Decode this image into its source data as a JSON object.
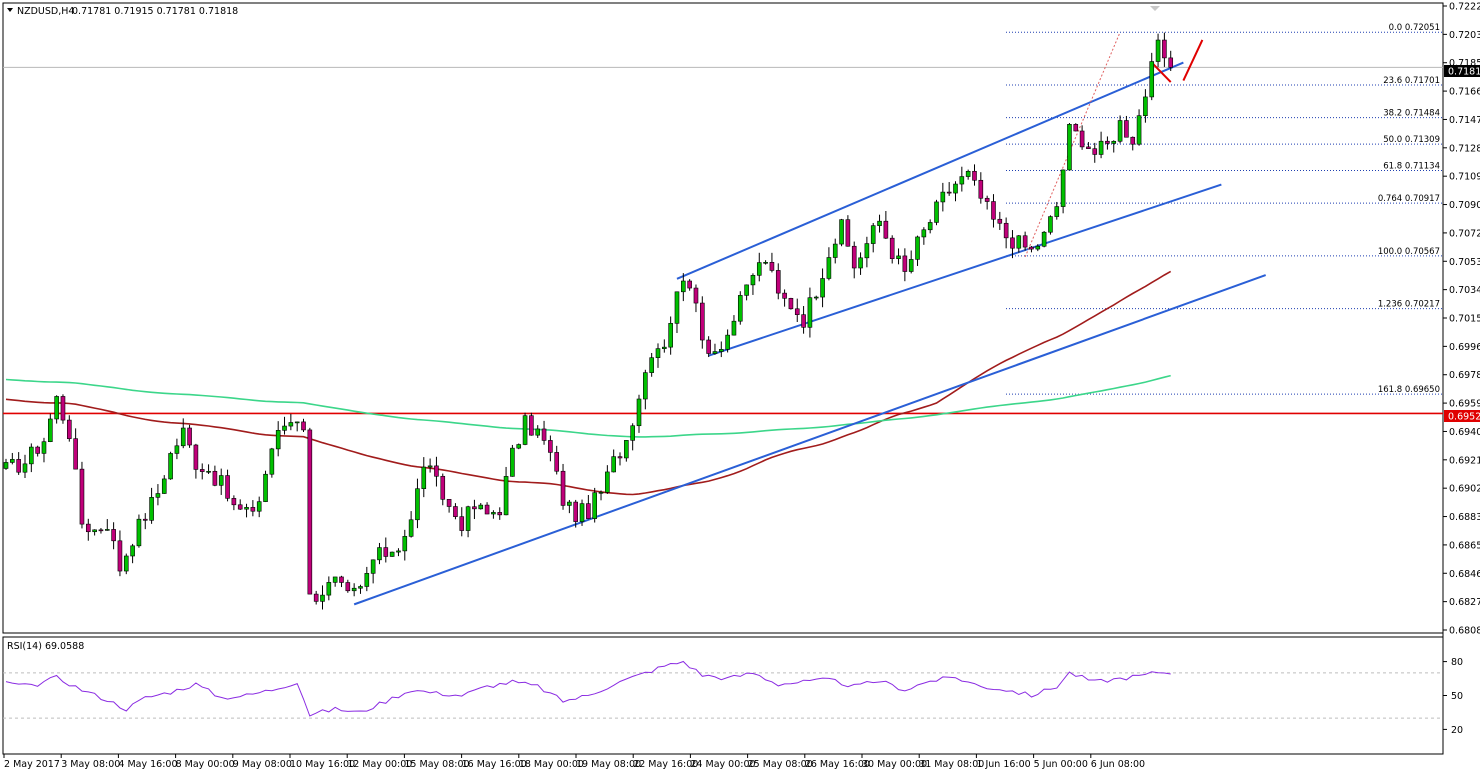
{
  "header": {
    "symbol": "NZDUSD,H4",
    "ohlc": "0.71781 0.71915 0.71781 0.71818"
  },
  "rsi_header": "RSI(14) 69.0588",
  "colors": {
    "bull": "#00c000",
    "bear": "#c0007a",
    "trend": "#2a5fd6",
    "ma_red": "#a11c1c",
    "ma_green": "#3cd68a",
    "fib": "#1f3fb0",
    "support": "#e00000",
    "rsi": "#8a2be2"
  },
  "chart_data": {
    "type": "candlestick",
    "price_range": [
      0.68085,
      0.72225
    ],
    "price_ticks": [
      "0.72225",
      "0.72035",
      "0.71850",
      "0.71660",
      "0.71470",
      "0.71285",
      "0.71095",
      "0.70905",
      "0.70720",
      "0.70530",
      "0.70340",
      "0.70155",
      "0.69966",
      "0.69780",
      "0.69590",
      "0.69400",
      "0.69215",
      "0.69025",
      "0.68833",
      "0.68650",
      "0.68460",
      "0.68270",
      "0.68085"
    ],
    "current_price": {
      "value": 0.71818,
      "label": "0.71818"
    },
    "support_line": {
      "value": 0.69522,
      "label": "0.69522"
    },
    "fib_levels": [
      {
        "label": "0.0 0.72051",
        "value": 0.72051
      },
      {
        "label": "23.6 0.71701",
        "value": 0.71701
      },
      {
        "label": "38.2 0.71484",
        "value": 0.71484
      },
      {
        "label": "50.0 0.71309",
        "value": 0.71309
      },
      {
        "label": "61.8 0.71134",
        "value": 0.71134
      },
      {
        "label": "0.764 0.70917",
        "value": 0.70917
      },
      {
        "label": "100.0 0.70567",
        "value": 0.70567
      },
      {
        "label": "1.236 0.70217",
        "value": 0.70217
      },
      {
        "label": "161.8 0.69650",
        "value": 0.6965
      }
    ],
    "time_labels": [
      "2 May 2017",
      "3 May 08:00",
      "4 May 16:00",
      "8 May 00:00",
      "9 May 08:00",
      "10 May 16:00",
      "12 May 00:00",
      "15 May 08:00",
      "16 May 16:00",
      "18 May 00:00",
      "19 May 08:00",
      "22 May 16:00",
      "24 May 00:00",
      "25 May 08:00",
      "26 May 16:00",
      "30 May 00:00",
      "31 May 08:00",
      "1 Jun 16:00",
      "5 Jun 00:00",
      "6 Jun 08:00"
    ],
    "anchors": [
      [
        0,
        0.6915
      ],
      [
        3,
        0.692
      ],
      [
        6,
        0.6935
      ],
      [
        8,
        0.6962
      ],
      [
        10,
        0.694
      ],
      [
        12,
        0.688
      ],
      [
        14,
        0.6875
      ],
      [
        16,
        0.688
      ],
      [
        18,
        0.685
      ],
      [
        20,
        0.687
      ],
      [
        22,
        0.6885
      ],
      [
        24,
        0.69
      ],
      [
        26,
        0.6925
      ],
      [
        28,
        0.694
      ],
      [
        30,
        0.692
      ],
      [
        32,
        0.6915
      ],
      [
        34,
        0.6905
      ],
      [
        36,
        0.689
      ],
      [
        38,
        0.6885
      ],
      [
        40,
        0.6895
      ],
      [
        42,
        0.693
      ],
      [
        44,
        0.6945
      ],
      [
        46,
        0.695
      ],
      [
        47,
        0.6945
      ],
      [
        48,
        0.683
      ],
      [
        50,
        0.6835
      ],
      [
        52,
        0.684
      ],
      [
        54,
        0.683
      ],
      [
        56,
        0.6835
      ],
      [
        58,
        0.6855
      ],
      [
        60,
        0.686
      ],
      [
        62,
        0.6865
      ],
      [
        64,
        0.688
      ],
      [
        66,
        0.692
      ],
      [
        68,
        0.6905
      ],
      [
        70,
        0.689
      ],
      [
        72,
        0.688
      ],
      [
        74,
        0.689
      ],
      [
        76,
        0.6885
      ],
      [
        78,
        0.689
      ],
      [
        80,
        0.6925
      ],
      [
        82,
        0.6945
      ],
      [
        84,
        0.694
      ],
      [
        86,
        0.6925
      ],
      [
        88,
        0.6895
      ],
      [
        90,
        0.6885
      ],
      [
        92,
        0.6888
      ],
      [
        94,
        0.69
      ],
      [
        96,
        0.692
      ],
      [
        98,
        0.6935
      ],
      [
        100,
        0.6965
      ],
      [
        102,
        0.6995
      ],
      [
        104,
        0.7
      ],
      [
        106,
        0.703
      ],
      [
        107,
        0.7045
      ],
      [
        108,
        0.704
      ],
      [
        110,
        0.7
      ],
      [
        112,
        0.6995
      ],
      [
        114,
        0.7005
      ],
      [
        116,
        0.7025
      ],
      [
        118,
        0.7045
      ],
      [
        120,
        0.7055
      ],
      [
        122,
        0.703
      ],
      [
        124,
        0.7025
      ],
      [
        126,
        0.7015
      ],
      [
        128,
        0.7035
      ],
      [
        130,
        0.706
      ],
      [
        132,
        0.7075
      ],
      [
        134,
        0.705
      ],
      [
        136,
        0.7065
      ],
      [
        138,
        0.708
      ],
      [
        140,
        0.706
      ],
      [
        142,
        0.7045
      ],
      [
        144,
        0.7065
      ],
      [
        146,
        0.708
      ],
      [
        148,
        0.7095
      ],
      [
        150,
        0.7105
      ],
      [
        152,
        0.711
      ],
      [
        154,
        0.7095
      ],
      [
        156,
        0.708
      ],
      [
        158,
        0.707
      ],
      [
        160,
        0.7065
      ],
      [
        162,
        0.706
      ],
      [
        164,
        0.707
      ],
      [
        166,
        0.709
      ],
      [
        168,
        0.714
      ],
      [
        170,
        0.7135
      ],
      [
        172,
        0.7125
      ],
      [
        174,
        0.713
      ],
      [
        176,
        0.7145
      ],
      [
        178,
        0.7135
      ],
      [
        180,
        0.7165
      ],
      [
        182,
        0.7195
      ],
      [
        184,
        0.7182
      ]
    ],
    "rsi": {
      "range": [
        0,
        100
      ],
      "ticks": [
        80,
        50,
        20
      ],
      "guide_levels": [
        70,
        30
      ],
      "last_value": 69.0588,
      "anchors": [
        [
          0,
          61
        ],
        [
          4,
          58
        ],
        [
          8,
          66
        ],
        [
          12,
          55
        ],
        [
          16,
          46
        ],
        [
          19,
          38
        ],
        [
          22,
          48
        ],
        [
          26,
          53
        ],
        [
          30,
          60
        ],
        [
          34,
          48
        ],
        [
          38,
          50
        ],
        [
          42,
          55
        ],
        [
          46,
          62
        ],
        [
          48,
          33
        ],
        [
          52,
          38
        ],
        [
          56,
          35
        ],
        [
          60,
          45
        ],
        [
          64,
          55
        ],
        [
          68,
          52
        ],
        [
          72,
          50
        ],
        [
          76,
          58
        ],
        [
          80,
          62
        ],
        [
          84,
          58
        ],
        [
          88,
          45
        ],
        [
          92,
          50
        ],
        [
          96,
          60
        ],
        [
          100,
          68
        ],
        [
          104,
          76
        ],
        [
          107,
          80
        ],
        [
          110,
          68
        ],
        [
          114,
          65
        ],
        [
          118,
          70
        ],
        [
          122,
          60
        ],
        [
          126,
          62
        ],
        [
          130,
          64
        ],
        [
          134,
          58
        ],
        [
          138,
          63
        ],
        [
          142,
          55
        ],
        [
          146,
          63
        ],
        [
          150,
          66
        ],
        [
          154,
          58
        ],
        [
          158,
          55
        ],
        [
          162,
          50
        ],
        [
          166,
          58
        ],
        [
          168,
          70
        ],
        [
          172,
          62
        ],
        [
          176,
          65
        ],
        [
          180,
          68
        ],
        [
          182,
          71
        ],
        [
          184,
          69
        ]
      ]
    }
  }
}
